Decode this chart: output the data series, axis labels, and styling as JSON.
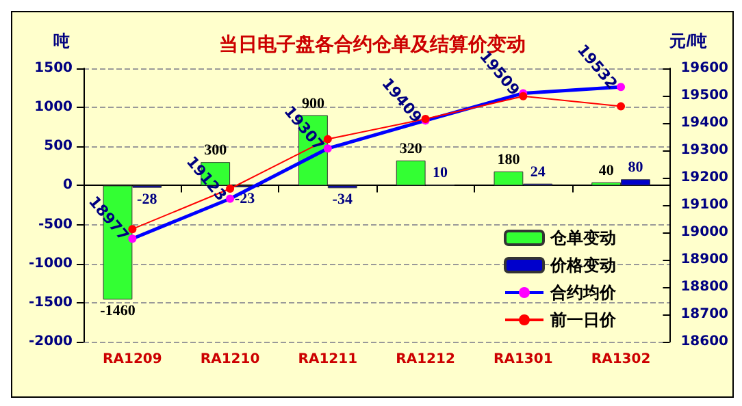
{
  "chart_data": {
    "type": "bar",
    "title": "当日电子盘各合约仓单及结算价变动",
    "ylabel": "吨",
    "y2label": "元/吨",
    "categories": [
      "RA1209",
      "RA1210",
      "RA1211",
      "RA1212",
      "RA1301",
      "RA1302"
    ],
    "series": [
      {
        "name": "仓单变动",
        "color": "#33ff33",
        "values": [
          -1460,
          300,
          900,
          320,
          180,
          40
        ],
        "value_labels": [
          "-1460",
          "300",
          "900",
          "320",
          "180",
          "40"
        ]
      },
      {
        "name": "价格变动",
        "color": "#0000cc",
        "values": [
          -28,
          -23,
          -34,
          10,
          24,
          80
        ],
        "value_labels": [
          "-28",
          "-23",
          "-34",
          "10",
          "24",
          "80"
        ]
      },
      {
        "name": "合约均价",
        "type": "line",
        "axis": "y2",
        "color": "#0000ff",
        "values": [
          18977,
          19123,
          19307,
          19409,
          19509,
          19532
        ],
        "value_labels": [
          "18977",
          "19123",
          "19307",
          "19409",
          "19509",
          "19532"
        ]
      },
      {
        "name": "前一日价",
        "type": "line",
        "axis": "y2",
        "color": "#ff0000",
        "values": [
          19012,
          19160,
          19341,
          19415,
          19498,
          19461
        ]
      }
    ],
    "ylim": [
      -2000,
      1500
    ],
    "yticks": [
      -2000,
      -1500,
      -1000,
      -500,
      0,
      500,
      1000,
      1500
    ],
    "y2lim": [
      18600,
      19600
    ],
    "y2ticks": [
      18600,
      18700,
      18800,
      18900,
      19000,
      19100,
      19200,
      19300,
      19400,
      19500,
      19600
    ],
    "grid": "y",
    "legend": "bottom right",
    "marker": "circle"
  }
}
